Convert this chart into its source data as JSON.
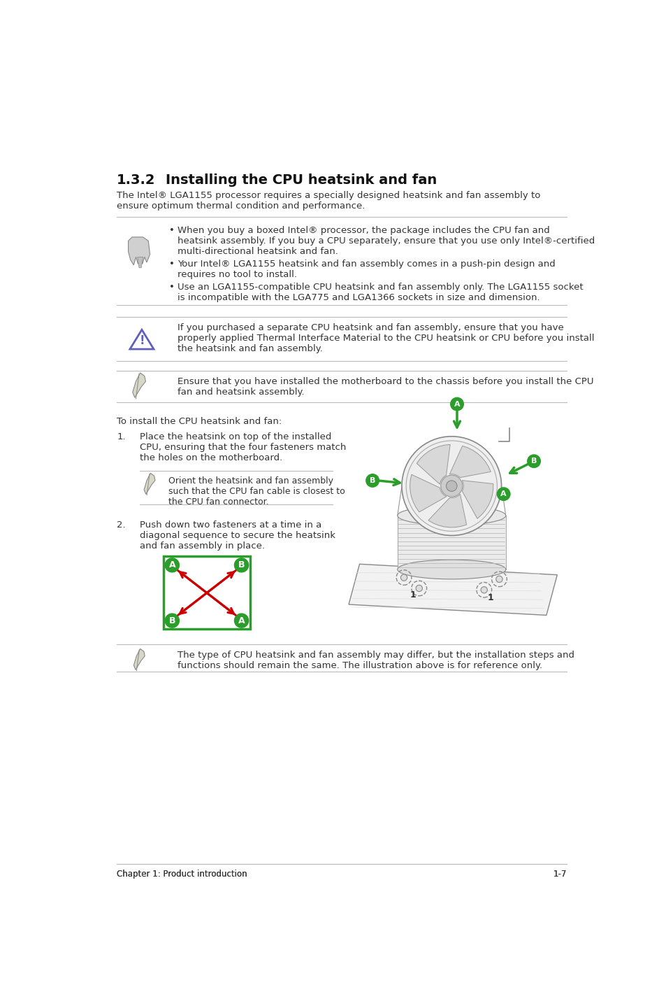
{
  "bg_color": "#ffffff",
  "title_num": "1.3.2",
  "title_text": "Installing the CPU heatsink and fan",
  "intro_text": "The Intel® LGA1155 processor requires a specially designed heatsink and fan assembly to\nensure optimum thermal condition and performance.",
  "bullet1": "When you buy a boxed Intel® processor, the package includes the CPU fan and\nheatsink assembly. If you buy a CPU separately, ensure that you use only Intel®-certified\nmulti-directional heatsink and fan.",
  "bullet2": "Your Intel® LGA1155 heatsink and fan assembly comes in a push-pin design and\nrequires no tool to install.",
  "bullet3": "Use an LGA1155-compatible CPU heatsink and fan assembly only. The LGA1155 socket\nis incompatible with the LGA775 and LGA1366 sockets in size and dimension.",
  "caution_text": "If you purchased a separate CPU heatsink and fan assembly, ensure that you have\nproperly applied Thermal Interface Material to the CPU heatsink or CPU before you install\nthe heatsink and fan assembly.",
  "note2_text": "Ensure that you have installed the motherboard to the chassis before you install the CPU\nfan and heatsink assembly.",
  "install_intro": "To install the CPU heatsink and fan:",
  "step1_text": "Place the heatsink on top of the installed\nCPU, ensuring that the four fasteners match\nthe holes on the motherboard.",
  "step1_note": "Orient the heatsink and fan assembly\nsuch that the CPU fan cable is closest to\nthe CPU fan connector.",
  "step2_text": "Push down two fasteners at a time in a\ndiagonal sequence to secure the heatsink\nand fan assembly in place.",
  "note3_text": "The type of CPU heatsink and fan assembly may differ, but the installation steps and\nfunctions should remain the same. The illustration above is for reference only.",
  "footer_left": "Chapter 1: Product introduction",
  "footer_right": "1-7",
  "line_color": "#bbbbbb",
  "text_color": "#333333",
  "green_color": "#2a9d2a",
  "red_color": "#cc0000",
  "blue_violet": "#6060bb",
  "title_fs": 14,
  "body_fs": 9.5,
  "small_fs": 9.0,
  "footer_fs": 8.5
}
